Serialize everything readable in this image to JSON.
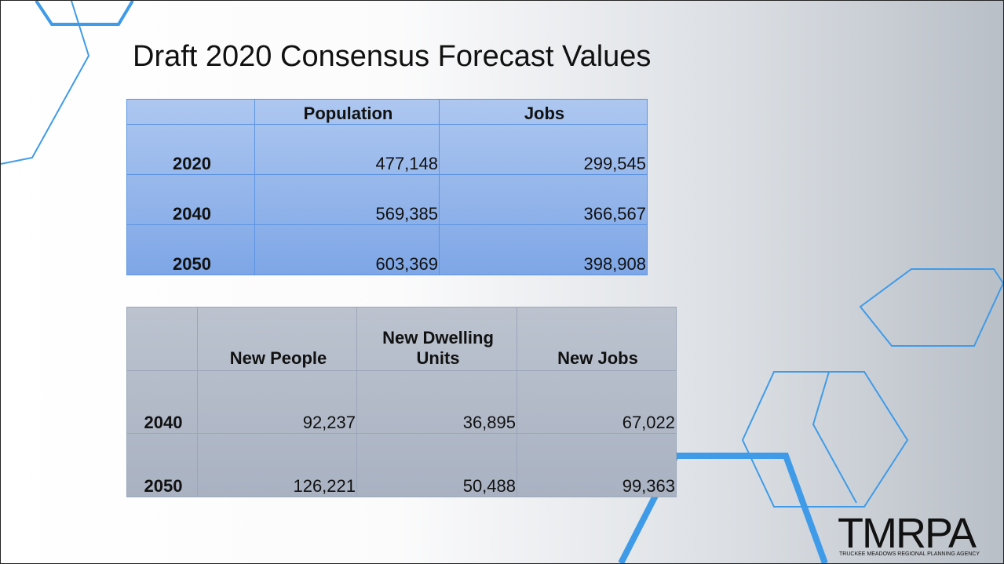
{
  "title": "Draft 2020 Consensus Forecast Values",
  "table1": {
    "header": [
      "",
      "Population",
      "Jobs"
    ],
    "rows": [
      [
        "2020",
        "477,148",
        "299,545"
      ],
      [
        "2040",
        "569,385",
        "366,567"
      ],
      [
        "2050",
        "603,369",
        "398,908"
      ]
    ]
  },
  "table2": {
    "header": [
      "",
      "New People",
      "New Dwelling Units",
      "New Jobs"
    ],
    "rows": [
      [
        "2040",
        "92,237",
        "36,895",
        "67,022"
      ],
      [
        "2050",
        "126,221",
        "50,488",
        "99,363"
      ]
    ]
  },
  "logo": {
    "name": "TMRPA",
    "subtitle": "TRUCKEE MEADOWS REGIONAL PLANNING AGENCY"
  }
}
